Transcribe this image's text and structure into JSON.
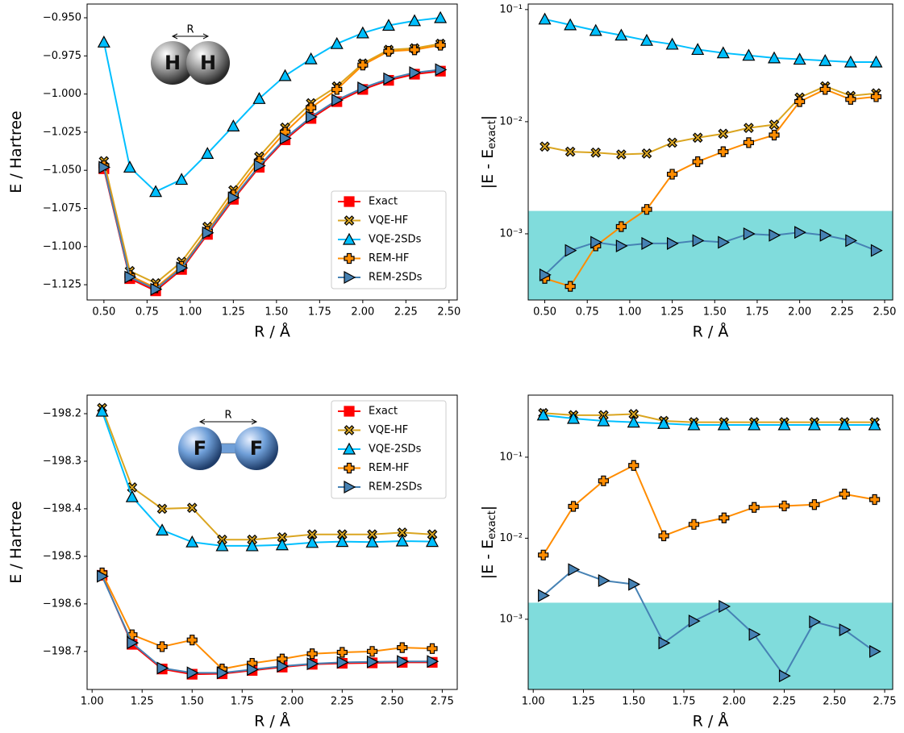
{
  "chart_data": [
    {
      "type": "line",
      "xlabel": "R / Å",
      "ylabel": [
        "E / Hartree"
      ],
      "illustration": {
        "atoms": [
          "H",
          "H"
        ],
        "bond_label": "R",
        "color": "#9a9a9a"
      },
      "x": [
        0.5,
        0.65,
        0.8,
        0.95,
        1.1,
        1.25,
        1.4,
        1.55,
        1.7,
        1.85,
        2.0,
        2.15,
        2.3,
        2.45
      ],
      "xlim": [
        0.4025,
        2.5475
      ],
      "xticks": [
        {
          "value": 0.5,
          "label": "0.50"
        },
        {
          "value": 0.75,
          "label": "0.75"
        },
        {
          "value": 1.0,
          "label": "1.00"
        },
        {
          "value": 1.25,
          "label": "1.25"
        },
        {
          "value": 1.5,
          "label": "1.50"
        },
        {
          "value": 1.75,
          "label": "1.75"
        },
        {
          "value": 2.0,
          "label": "2.00"
        },
        {
          "value": 2.25,
          "label": "2.25"
        },
        {
          "value": 2.5,
          "label": "2.50"
        }
      ],
      "ylim": [
        -1.135,
        -0.941
      ],
      "yticks": [
        {
          "value": -0.95,
          "label": "−0.950"
        },
        {
          "value": -0.975,
          "label": "−0.975"
        },
        {
          "value": -1.0,
          "label": "−1.000"
        },
        {
          "value": -1.025,
          "label": "−1.025"
        },
        {
          "value": -1.05,
          "label": "−1.050"
        },
        {
          "value": -1.075,
          "label": "−1.075"
        },
        {
          "value": -1.1,
          "label": "−1.100"
        },
        {
          "value": -1.125,
          "label": "−1.125"
        }
      ],
      "legend": "lower right",
      "series": [
        {
          "name": "Exact",
          "color": "#ff0000",
          "marker": "s",
          "edgecolor": "#ff0000",
          "values": [
            -1.049,
            -1.121,
            -1.129,
            -1.115,
            -1.092,
            -1.069,
            -1.048,
            -1.03,
            -1.016,
            -1.005,
            -0.997,
            -0.991,
            -0.987,
            -0.985
          ]
        },
        {
          "name": "VQE-HF",
          "color": "#daa520",
          "marker": "X",
          "edgecolor": "#000000",
          "values": [
            -1.044,
            -1.116,
            -1.124,
            -1.11,
            -1.087,
            -1.063,
            -1.041,
            -1.022,
            -1.006,
            -0.995,
            -0.98,
            -0.971,
            -0.97,
            -0.967
          ]
        },
        {
          "name": "VQE-2SDs",
          "color": "#00bfff",
          "marker": "^",
          "edgecolor": "#000000",
          "values": [
            -0.966,
            -1.048,
            -1.064,
            -1.056,
            -1.039,
            -1.021,
            -1.003,
            -0.988,
            -0.977,
            -0.967,
            -0.96,
            -0.955,
            -0.952,
            -0.95
          ]
        },
        {
          "name": "REM-HF",
          "color": "#ff8c00",
          "marker": "P",
          "edgecolor": "#000000",
          "values": [
            -1.047,
            -1.119,
            -1.127,
            -1.113,
            -1.09,
            -1.066,
            -1.044,
            -1.025,
            -1.009,
            -0.997,
            -0.981,
            -0.972,
            -0.971,
            -0.968
          ]
        },
        {
          "name": "REM-2SDs",
          "color": "#4682b4",
          "marker": ">",
          "edgecolor": "#000000",
          "values": [
            -1.048,
            -1.12,
            -1.128,
            -1.114,
            -1.091,
            -1.068,
            -1.047,
            -1.029,
            -1.015,
            -1.004,
            -0.996,
            -0.99,
            -0.986,
            -0.984
          ]
        }
      ]
    },
    {
      "type": "line",
      "xlabel": "R / Å",
      "ylabel": [
        "|E - E",
        "exact",
        "|"
      ],
      "log_y": true,
      "band": {
        "below": 0.0016,
        "color": "#80dcdc"
      },
      "x": [
        0.5,
        0.65,
        0.8,
        0.95,
        1.1,
        1.25,
        1.4,
        1.55,
        1.7,
        1.85,
        2.0,
        2.15,
        2.3,
        2.45
      ],
      "xlim": [
        0.4025,
        2.5475
      ],
      "xticks": [
        {
          "value": 0.5,
          "label": "0.50"
        },
        {
          "value": 0.75,
          "label": "0.75"
        },
        {
          "value": 1.0,
          "label": "1.00"
        },
        {
          "value": 1.25,
          "label": "1.25"
        },
        {
          "value": 1.5,
          "label": "1.50"
        },
        {
          "value": 1.75,
          "label": "1.75"
        },
        {
          "value": 2.0,
          "label": "2.00"
        },
        {
          "value": 2.25,
          "label": "2.25"
        },
        {
          "value": 2.5,
          "label": "2.50"
        }
      ],
      "ylim": [
        0.000257,
        0.112
      ],
      "yticks": [
        {
          "value": 0.001,
          "label": "10⁻³"
        },
        {
          "value": 0.01,
          "label": "10⁻²"
        },
        {
          "value": 0.1,
          "label": "10⁻¹"
        }
      ],
      "series": [
        {
          "name": "VQE-HF",
          "color": "#daa520",
          "marker": "X",
          "edgecolor": "#000000",
          "values": [
            0.006,
            0.0054,
            0.0053,
            0.0051,
            0.0052,
            0.0065,
            0.0072,
            0.0078,
            0.0088,
            0.0094,
            0.0164,
            0.0207,
            0.017,
            0.0179
          ]
        },
        {
          "name": "VQE-2SDs",
          "color": "#00bfff",
          "marker": "^",
          "edgecolor": "#000000",
          "values": [
            0.082,
            0.073,
            0.065,
            0.059,
            0.053,
            0.049,
            0.044,
            0.041,
            0.039,
            0.037,
            0.036,
            0.035,
            0.034,
            0.034
          ]
        },
        {
          "name": "REM-HF",
          "color": "#ff8c00",
          "marker": "P",
          "edgecolor": "#000000",
          "values": [
            0.0004,
            0.00034,
            0.00078,
            0.00116,
            0.00165,
            0.0034,
            0.0044,
            0.0054,
            0.0065,
            0.0076,
            0.0151,
            0.0194,
            0.0158,
            0.0167
          ]
        },
        {
          "name": "REM-2SDs",
          "color": "#4682b4",
          "marker": ">",
          "edgecolor": "#000000",
          "values": [
            0.00043,
            0.00071,
            0.00084,
            0.00078,
            0.00082,
            0.00082,
            0.00087,
            0.00084,
            0.001,
            0.00097,
            0.00103,
            0.00097,
            0.00087,
            0.00071
          ]
        }
      ]
    },
    {
      "type": "line",
      "xlabel": "R / Å",
      "ylabel": [
        "E / Hartree"
      ],
      "illustration": {
        "atoms": [
          "F",
          "F"
        ],
        "bond_label": "R",
        "color": "#6f9fd8"
      },
      "x": [
        1.05,
        1.2,
        1.35,
        1.5,
        1.65,
        1.8,
        1.95,
        2.1,
        2.25,
        2.4,
        2.55,
        2.7
      ],
      "xlim": [
        0.975,
        2.825
      ],
      "xticks": [
        {
          "value": 1.0,
          "label": "1.00"
        },
        {
          "value": 1.25,
          "label": "1.25"
        },
        {
          "value": 1.5,
          "label": "1.50"
        },
        {
          "value": 1.75,
          "label": "1.75"
        },
        {
          "value": 2.0,
          "label": "2.00"
        },
        {
          "value": 2.25,
          "label": "2.25"
        },
        {
          "value": 2.5,
          "label": "2.50"
        },
        {
          "value": 2.75,
          "label": "2.75"
        }
      ],
      "ylim": [
        -198.78,
        -198.161
      ],
      "yticks": [
        {
          "value": -198.2,
          "label": "−198.2"
        },
        {
          "value": -198.3,
          "label": "−198.3"
        },
        {
          "value": -198.4,
          "label": "−198.4"
        },
        {
          "value": -198.5,
          "label": "−198.5"
        },
        {
          "value": -198.6,
          "label": "−198.6"
        },
        {
          "value": -198.7,
          "label": "−198.7"
        }
      ],
      "legend": "upper right",
      "series": [
        {
          "name": "Exact",
          "color": "#ff0000",
          "marker": "s",
          "edgecolor": "#ff0000",
          "values": [
            -198.54,
            -198.685,
            -198.737,
            -198.748,
            -198.747,
            -198.74,
            -198.733,
            -198.727,
            -198.725,
            -198.724,
            -198.723,
            -198.723
          ]
        },
        {
          "name": "VQE-HF",
          "color": "#daa520",
          "marker": "X",
          "edgecolor": "#000000",
          "values": [
            -198.188,
            -198.355,
            -198.4,
            -198.398,
            -198.465,
            -198.465,
            -198.46,
            -198.454,
            -198.454,
            -198.454,
            -198.45,
            -198.454
          ]
        },
        {
          "name": "VQE-2SDs",
          "color": "#00bfff",
          "marker": "^",
          "edgecolor": "#000000",
          "values": [
            -198.195,
            -198.375,
            -198.445,
            -198.47,
            -198.478,
            -198.478,
            -198.476,
            -198.471,
            -198.469,
            -198.47,
            -198.468,
            -198.469
          ]
        },
        {
          "name": "REM-HF",
          "color": "#ff8c00",
          "marker": "P",
          "edgecolor": "#000000",
          "values": [
            -198.535,
            -198.665,
            -198.69,
            -198.676,
            -198.737,
            -198.725,
            -198.716,
            -198.705,
            -198.702,
            -198.7,
            -198.692,
            -198.694
          ]
        },
        {
          "name": "REM-2SDs",
          "color": "#4682b4",
          "marker": ">",
          "edgecolor": "#000000",
          "values": [
            -198.542,
            -198.682,
            -198.735,
            -198.745,
            -198.745,
            -198.738,
            -198.731,
            -198.726,
            -198.723,
            -198.722,
            -198.721,
            -198.721
          ]
        }
      ]
    },
    {
      "type": "line",
      "xlabel": "R / Å",
      "ylabel": [
        "|E - E",
        "exact",
        "|"
      ],
      "log_y": true,
      "band": {
        "below": 0.0016,
        "color": "#80dcdc"
      },
      "x": [
        1.05,
        1.2,
        1.35,
        1.5,
        1.65,
        1.8,
        1.95,
        2.1,
        2.25,
        2.4,
        2.55,
        2.7
      ],
      "xlim": [
        0.975,
        2.79
      ],
      "xticks": [
        {
          "value": 1.0,
          "label": "1.00"
        },
        {
          "value": 1.25,
          "label": "1.25"
        },
        {
          "value": 1.5,
          "label": "1.50"
        },
        {
          "value": 1.75,
          "label": "1.75"
        },
        {
          "value": 2.0,
          "label": "2.00"
        },
        {
          "value": 2.25,
          "label": "2.25"
        },
        {
          "value": 2.5,
          "label": "2.50"
        },
        {
          "value": 2.75,
          "label": "2.75"
        }
      ],
      "ylim": [
        0.000136,
        0.583
      ],
      "yticks": [
        {
          "value": 0.001,
          "label": "10⁻³"
        },
        {
          "value": 0.01,
          "label": "10⁻²"
        },
        {
          "value": 0.1,
          "label": "10⁻¹"
        }
      ],
      "series": [
        {
          "name": "VQE-HF",
          "color": "#daa520",
          "marker": "X",
          "edgecolor": "#000000",
          "values": [
            0.35,
            0.33,
            0.33,
            0.34,
            0.28,
            0.27,
            0.27,
            0.27,
            0.27,
            0.27,
            0.27,
            0.27
          ]
        },
        {
          "name": "VQE-2SDs",
          "color": "#00bfff",
          "marker": "^",
          "edgecolor": "#000000",
          "values": [
            0.33,
            0.3,
            0.28,
            0.27,
            0.26,
            0.25,
            0.25,
            0.25,
            0.25,
            0.25,
            0.25,
            0.25
          ]
        },
        {
          "name": "REM-HF",
          "color": "#ff8c00",
          "marker": "P",
          "edgecolor": "#000000",
          "values": [
            0.0062,
            0.0247,
            0.051,
            0.079,
            0.0107,
            0.0148,
            0.0178,
            0.024,
            0.025,
            0.026,
            0.035,
            0.03
          ]
        },
        {
          "name": "REM-2SDs",
          "color": "#4682b4",
          "marker": ">",
          "edgecolor": "#000000",
          "values": [
            0.00196,
            0.0041,
            0.003,
            0.0027,
            0.00051,
            0.00095,
            0.00144,
            0.00065,
            0.0002,
            0.00093,
            0.00074,
            0.0004
          ]
        }
      ]
    }
  ]
}
